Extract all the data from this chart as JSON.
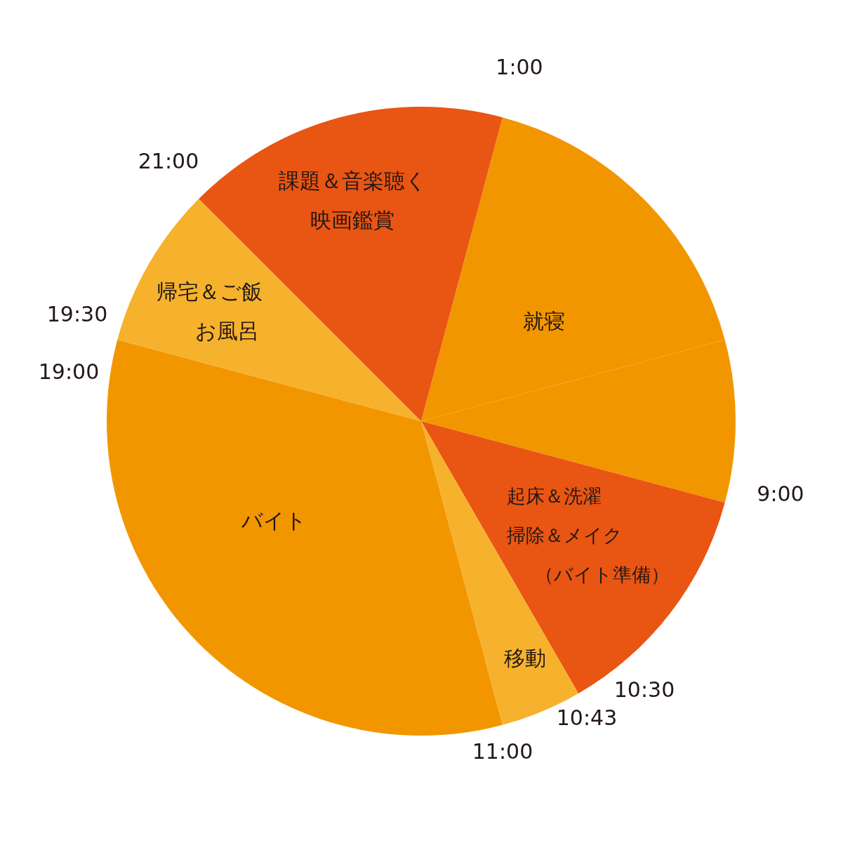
{
  "chart_data": {
    "type": "pie",
    "categories": [
      "就寝",
      null,
      "起床＆洗濯掃除＆メイク（バイト準備）",
      "移動",
      "バイト",
      "帰宅＆ご飯お風呂",
      "課題＆音楽聴く映画鑑賞"
    ],
    "values": [
      16.67,
      8.33,
      12.5,
      4.17,
      33.33,
      8.33,
      16.67
    ],
    "colors": [
      "#f29600",
      "#f29600",
      "#e95513",
      "#f6b22c",
      "#f29600",
      "#f6b22c",
      "#e95513"
    ],
    "annotations": [
      "1:00",
      "9:00",
      "10:30",
      "10:43",
      "11:00",
      "19:00",
      "19:30",
      "21:00"
    ]
  }
}
